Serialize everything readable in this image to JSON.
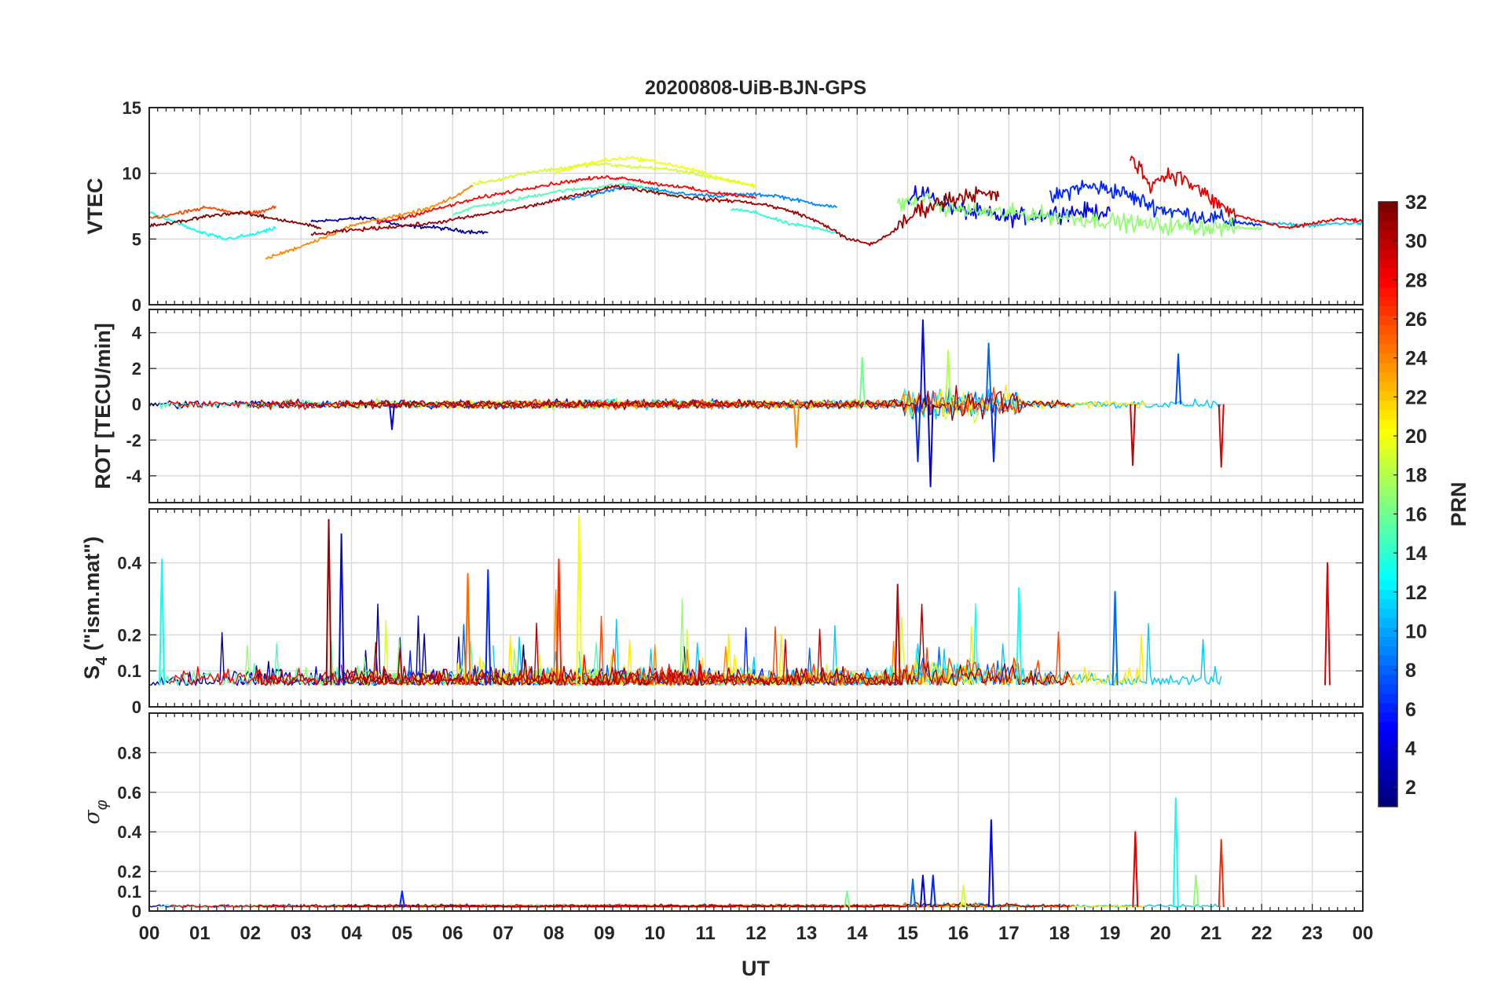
{
  "title": "20200808-UiB-BJN-GPS",
  "chart_data": {
    "type": "line",
    "title": "20200808-UiB-BJN-GPS",
    "xlabel": "UT",
    "xlim": [
      0,
      24
    ],
    "x_tick_labels": [
      "00",
      "01",
      "02",
      "03",
      "04",
      "05",
      "06",
      "07",
      "08",
      "09",
      "10",
      "11",
      "12",
      "13",
      "14",
      "15",
      "16",
      "17",
      "18",
      "19",
      "20",
      "21",
      "22",
      "23",
      "00"
    ],
    "colorbar": {
      "label": "PRN",
      "range": [
        1,
        32
      ],
      "tick_labels": [
        "2",
        "4",
        "6",
        "8",
        "10",
        "12",
        "14",
        "16",
        "18",
        "20",
        "22",
        "24",
        "26",
        "28",
        "30",
        "32"
      ],
      "colormap": "jet",
      "low_color": "#00008f",
      "high_color": "#800000"
    },
    "panels": [
      {
        "id": "vtec",
        "ylabel": "VTEC",
        "ylim": [
          0,
          15
        ],
        "yticks": [
          0,
          5,
          10,
          15
        ],
        "series": [
          {
            "prn": 2,
            "values": [
              [
                3.2,
                6.3
              ],
              [
                3.8,
                6.5
              ],
              [
                4.4,
                6.6
              ],
              [
                5.0,
                6.0
              ],
              [
                5.6,
                5.9
              ],
              [
                6.2,
                5.6
              ],
              [
                6.7,
                5.5
              ]
            ]
          },
          {
            "prn": 5,
            "values": [
              [
                15.0,
                7.8
              ],
              [
                15.3,
                8.6
              ],
              [
                15.6,
                7.9
              ],
              [
                16.0,
                7.2
              ],
              [
                16.5,
                6.9
              ],
              [
                17.0,
                6.6
              ],
              [
                17.5,
                6.8
              ],
              [
                18.0,
                7.0
              ],
              [
                18.5,
                7.1
              ],
              [
                19.0,
                7.1
              ]
            ]
          },
          {
            "prn": 6,
            "values": [
              [
                17.8,
                8.0
              ],
              [
                18.4,
                9.0
              ],
              [
                18.8,
                8.9
              ],
              [
                19.2,
                8.6
              ],
              [
                19.6,
                7.9
              ],
              [
                20.0,
                7.3
              ],
              [
                20.5,
                6.9
              ],
              [
                21.0,
                6.6
              ],
              [
                21.5,
                6.3
              ],
              [
                22.0,
                6.0
              ]
            ]
          },
          {
            "prn": 9,
            "values": [
              [
                8.2,
                8.0
              ],
              [
                8.8,
                8.4
              ],
              [
                9.4,
                9.0
              ],
              [
                10.0,
                8.8
              ],
              [
                10.6,
                8.4
              ],
              [
                11.2,
                8.3
              ],
              [
                11.8,
                8.4
              ],
              [
                12.4,
                8.3
              ],
              [
                13.0,
                7.8
              ],
              [
                13.6,
                7.4
              ]
            ]
          },
          {
            "prn": 11,
            "values": [
              [
                22.0,
                6.3
              ],
              [
                22.5,
                6.1
              ],
              [
                23.0,
                6.0
              ],
              [
                23.5,
                6.2
              ],
              [
                24.0,
                6.2
              ]
            ]
          },
          {
            "prn": 13,
            "values": [
              [
                0.0,
                7.0
              ],
              [
                0.5,
                6.3
              ],
              [
                1.0,
                5.5
              ],
              [
                1.5,
                5.0
              ],
              [
                2.0,
                5.3
              ],
              [
                2.5,
                5.8
              ]
            ]
          },
          {
            "prn": 14,
            "values": [
              [
                11.5,
                7.3
              ],
              [
                12.0,
                7.0
              ],
              [
                12.6,
                6.2
              ],
              [
                13.2,
                5.8
              ],
              [
                13.6,
                5.5
              ]
            ]
          },
          {
            "prn": 15,
            "values": [
              [
                6.0,
                6.9
              ],
              [
                6.5,
                7.5
              ],
              [
                7.0,
                7.8
              ],
              [
                7.5,
                8.2
              ],
              [
                8.0,
                8.6
              ],
              [
                8.5,
                8.8
              ],
              [
                9.0,
                9.0
              ],
              [
                9.5,
                9.2
              ],
              [
                10.0,
                8.6
              ],
              [
                10.5,
                8.2
              ]
            ]
          },
          {
            "prn": 17,
            "values": [
              [
                14.8,
                7.6
              ],
              [
                15.3,
                7.9
              ],
              [
                15.8,
                7.4
              ],
              [
                16.3,
                7.1
              ],
              [
                16.8,
                7.0
              ],
              [
                17.3,
                6.9
              ],
              [
                17.8,
                6.8
              ],
              [
                18.5,
                6.5
              ],
              [
                19.2,
                6.3
              ],
              [
                20.0,
                6.0
              ],
              [
                21.0,
                5.9
              ],
              [
                22.0,
                5.8
              ]
            ]
          },
          {
            "prn": 19,
            "values": [
              [
                6.4,
                9.2
              ],
              [
                7.0,
                9.6
              ],
              [
                7.5,
                10.1
              ],
              [
                8.0,
                10.3
              ],
              [
                8.5,
                10.6
              ],
              [
                9.0,
                10.7
              ],
              [
                9.5,
                10.5
              ],
              [
                10.0,
                10.4
              ],
              [
                10.5,
                10.2
              ],
              [
                11.0,
                9.8
              ],
              [
                11.5,
                9.4
              ],
              [
                12.0,
                9.0
              ]
            ]
          },
          {
            "prn": 20,
            "values": [
              [
                8.0,
                10.0
              ],
              [
                8.5,
                10.6
              ],
              [
                9.0,
                11.0
              ],
              [
                9.5,
                11.2
              ],
              [
                10.0,
                10.9
              ],
              [
                10.5,
                10.5
              ],
              [
                11.0,
                10.0
              ],
              [
                11.5,
                9.4
              ],
              [
                12.0,
                9.0
              ]
            ]
          },
          {
            "prn": 24,
            "values": [
              [
                2.3,
                3.5
              ],
              [
                2.9,
                4.3
              ],
              [
                3.5,
                5.2
              ],
              [
                4.0,
                6.0
              ],
              [
                4.5,
                6.5
              ],
              [
                5.0,
                6.8
              ],
              [
                5.5,
                7.3
              ],
              [
                6.0,
                8.1
              ],
              [
                6.4,
                9.1
              ]
            ]
          },
          {
            "prn": 26,
            "values": [
              [
                0.0,
                6.6
              ],
              [
                0.4,
                6.8
              ],
              [
                0.8,
                7.2
              ],
              [
                1.2,
                7.4
              ],
              [
                1.7,
                7.0
              ],
              [
                2.2,
                7.0
              ],
              [
                2.5,
                7.5
              ]
            ]
          },
          {
            "prn": 28,
            "values": [
              [
                4.5,
                6.2
              ],
              [
                5.0,
                6.6
              ],
              [
                5.5,
                7.1
              ],
              [
                6.0,
                7.6
              ],
              [
                6.5,
                8.1
              ],
              [
                7.0,
                8.5
              ],
              [
                7.5,
                8.9
              ],
              [
                8.0,
                9.2
              ],
              [
                8.5,
                9.5
              ],
              [
                9.0,
                9.7
              ],
              [
                9.5,
                9.6
              ],
              [
                10.0,
                9.2
              ],
              [
                10.5,
                9.0
              ],
              [
                11.0,
                8.6
              ],
              [
                11.5,
                8.4
              ],
              [
                12.0,
                8.1
              ]
            ]
          },
          {
            "prn": 29,
            "values": [
              [
                19.4,
                11.4
              ],
              [
                19.8,
                9.2
              ],
              [
                20.2,
                10.0
              ],
              [
                20.5,
                9.5
              ],
              [
                21.0,
                8.0
              ],
              [
                21.5,
                6.8
              ],
              [
                22.0,
                6.3
              ],
              [
                22.5,
                5.8
              ],
              [
                23.0,
                6.2
              ],
              [
                23.5,
                6.5
              ],
              [
                24.0,
                6.4
              ]
            ]
          },
          {
            "prn": 31,
            "values": [
              [
                3.2,
                5.3
              ],
              [
                3.8,
                5.6
              ],
              [
                4.4,
                5.8
              ],
              [
                5.0,
                6.0
              ],
              [
                5.6,
                6.2
              ],
              [
                6.2,
                6.6
              ],
              [
                6.8,
                7.0
              ],
              [
                7.4,
                7.4
              ],
              [
                8.0,
                7.9
              ],
              [
                8.6,
                8.5
              ],
              [
                9.2,
                9.0
              ],
              [
                9.8,
                8.7
              ],
              [
                10.4,
                8.3
              ],
              [
                11.0,
                8.0
              ],
              [
                11.6,
                7.9
              ],
              [
                12.2,
                7.6
              ],
              [
                12.8,
                7.0
              ],
              [
                13.4,
                6.0
              ],
              [
                13.8,
                5.0
              ],
              [
                14.3,
                4.6
              ],
              [
                14.8,
                5.8
              ],
              [
                15.2,
                7.2
              ],
              [
                15.8,
                8.0
              ],
              [
                16.3,
                8.5
              ],
              [
                16.8,
                8.2
              ]
            ]
          },
          {
            "prn": 32,
            "values": [
              [
                0.0,
                6.0
              ],
              [
                0.6,
                6.3
              ],
              [
                1.2,
                6.8
              ],
              [
                1.8,
                7.0
              ],
              [
                2.4,
                6.6
              ],
              [
                3.0,
                6.2
              ],
              [
                3.4,
                5.8
              ]
            ]
          }
        ]
      },
      {
        "id": "rot",
        "ylabel": "ROT [TECU/min]",
        "ylim": [
          -5.5,
          5.3
        ],
        "yticks": [
          -4,
          -2,
          0,
          2,
          4
        ],
        "spikes": [
          {
            "prn": 5,
            "x": 15.3,
            "value": 4.7
          },
          {
            "prn": 4,
            "x": 15.45,
            "value": -4.6
          },
          {
            "prn": 6,
            "x": 15.2,
            "value": -3.2
          },
          {
            "prn": 8,
            "x": 16.6,
            "value": 3.4
          },
          {
            "prn": 6,
            "x": 16.7,
            "value": -3.2
          },
          {
            "prn": 18,
            "x": 15.8,
            "value": 3.0
          },
          {
            "prn": 16,
            "x": 14.1,
            "value": 2.6
          },
          {
            "prn": 24,
            "x": 12.8,
            "value": -2.4
          },
          {
            "prn": 30,
            "x": 19.45,
            "value": -3.4
          },
          {
            "prn": 29,
            "x": 21.2,
            "value": -3.5
          },
          {
            "prn": 7,
            "x": 20.35,
            "value": 2.8
          },
          {
            "prn": 4,
            "x": 4.8,
            "value": -1.4
          }
        ]
      },
      {
        "id": "s4",
        "ylabel": "S4 (\"ism.mat\")",
        "ylabel_main": "S",
        "ylabel_sub": "4",
        "ylabel_tail": " (\"ism.mat\")",
        "ylim": [
          0,
          0.55
        ],
        "yticks": [
          0,
          0.1,
          0.2,
          0.4
        ],
        "spikes": [
          {
            "prn": 31,
            "x": 3.55,
            "value": 0.52
          },
          {
            "prn": 5,
            "x": 3.8,
            "value": 0.48
          },
          {
            "prn": 20,
            "x": 8.5,
            "value": 0.53
          },
          {
            "prn": 27,
            "x": 8.1,
            "value": 0.41
          },
          {
            "prn": 13,
            "x": 0.25,
            "value": 0.41
          },
          {
            "prn": 29,
            "x": 23.3,
            "value": 0.4
          },
          {
            "prn": 6,
            "x": 6.7,
            "value": 0.38
          },
          {
            "prn": 25,
            "x": 6.3,
            "value": 0.37
          },
          {
            "prn": 30,
            "x": 14.8,
            "value": 0.34
          },
          {
            "prn": 8,
            "x": 19.1,
            "value": 0.32
          },
          {
            "prn": 13,
            "x": 17.2,
            "value": 0.33
          }
        ]
      },
      {
        "id": "sigma",
        "ylabel": "σφ",
        "ylabel_main": "σ",
        "ylabel_sub": "φ",
        "ylim": [
          0,
          1.0
        ],
        "yticks": [
          0,
          0.1,
          0.2,
          0.4,
          0.6,
          0.8
        ],
        "spikes": [
          {
            "prn": 13,
            "x": 20.3,
            "value": 0.57
          },
          {
            "prn": 5,
            "x": 16.65,
            "value": 0.46
          },
          {
            "prn": 29,
            "x": 19.5,
            "value": 0.4
          },
          {
            "prn": 27,
            "x": 21.2,
            "value": 0.36
          },
          {
            "prn": 17,
            "x": 20.7,
            "value": 0.18
          },
          {
            "prn": 4,
            "x": 15.3,
            "value": 0.18
          },
          {
            "prn": 6,
            "x": 15.5,
            "value": 0.18
          },
          {
            "prn": 8,
            "x": 15.1,
            "value": 0.16
          },
          {
            "prn": 19,
            "x": 16.1,
            "value": 0.13
          },
          {
            "prn": 6,
            "x": 5.0,
            "value": 0.1
          },
          {
            "prn": 16,
            "x": 13.8,
            "value": 0.1
          }
        ]
      }
    ]
  }
}
